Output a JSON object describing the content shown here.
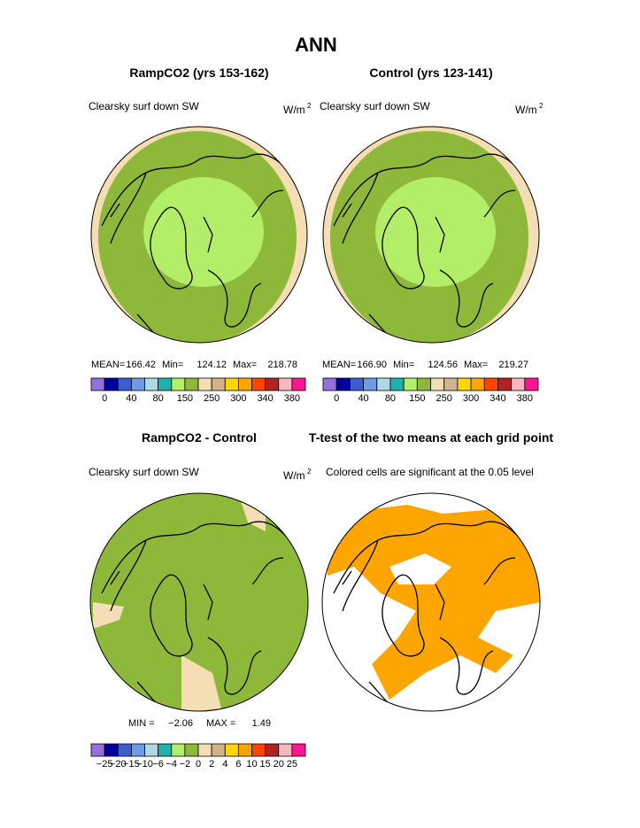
{
  "title": "ANN",
  "panels": [
    {
      "title": "RampCO2 (yrs 153-162)",
      "variable": "Clearsky surf down SW",
      "units": "W/m",
      "units_power": "2",
      "stats": [
        {
          "label": "MEAN=",
          "value": "166.42"
        },
        {
          "label": "Min=",
          "value": "124.12"
        },
        {
          "label": "Max=",
          "value": "218.78"
        }
      ]
    },
    {
      "title": "Control (yrs 123-141)",
      "variable": "Clearsky surf down SW",
      "units": "W/m",
      "units_power": "2",
      "stats": [
        {
          "label": "MEAN=",
          "value": "166.90"
        },
        {
          "label": "Min=",
          "value": "124.56"
        },
        {
          "label": "Max=",
          "value": "219.27"
        }
      ]
    },
    {
      "title": "RampCO2 - Control",
      "variable": "Clearsky surf down SW",
      "units": "W/m",
      "units_power": "2",
      "stats": [
        {
          "label": "MIN =",
          "value": "−2.06"
        },
        {
          "label": "MAX =",
          "value": "1.49"
        }
      ]
    },
    {
      "title": "T-test of the two means at each grid point",
      "variable": "Colored cells are significant at the 0.05 level"
    }
  ],
  "colorbars": [
    {
      "colors": [
        "#9370db",
        "#0000a0",
        "#3a5fcd",
        "#6f9ae6",
        "#add8e6",
        "#20b2aa",
        "#b3ee68",
        "#8db83a",
        "#f5deb3",
        "#d2b48c",
        "#ffd700",
        "#ffa500",
        "#ff4500",
        "#b22222",
        "#ffb6c1",
        "#ff1493"
      ],
      "labels": [
        "0",
        "40",
        "80",
        "150",
        "250",
        "300",
        "340",
        "380"
      ]
    },
    {
      "colors": [
        "#9370db",
        "#0000a0",
        "#3a5fcd",
        "#6f9ae6",
        "#add8e6",
        "#20b2aa",
        "#b3ee68",
        "#8db83a",
        "#f5deb3",
        "#d2b48c",
        "#ffd700",
        "#ffa500",
        "#ff4500",
        "#b22222",
        "#ffb6c1",
        "#ff1493"
      ],
      "labels": [
        "−25",
        "−20",
        "−15",
        "−10",
        "−6",
        "−4",
        "−2",
        "0",
        "2",
        "4",
        "6",
        "10",
        "15",
        "20",
        "25"
      ]
    }
  ]
}
